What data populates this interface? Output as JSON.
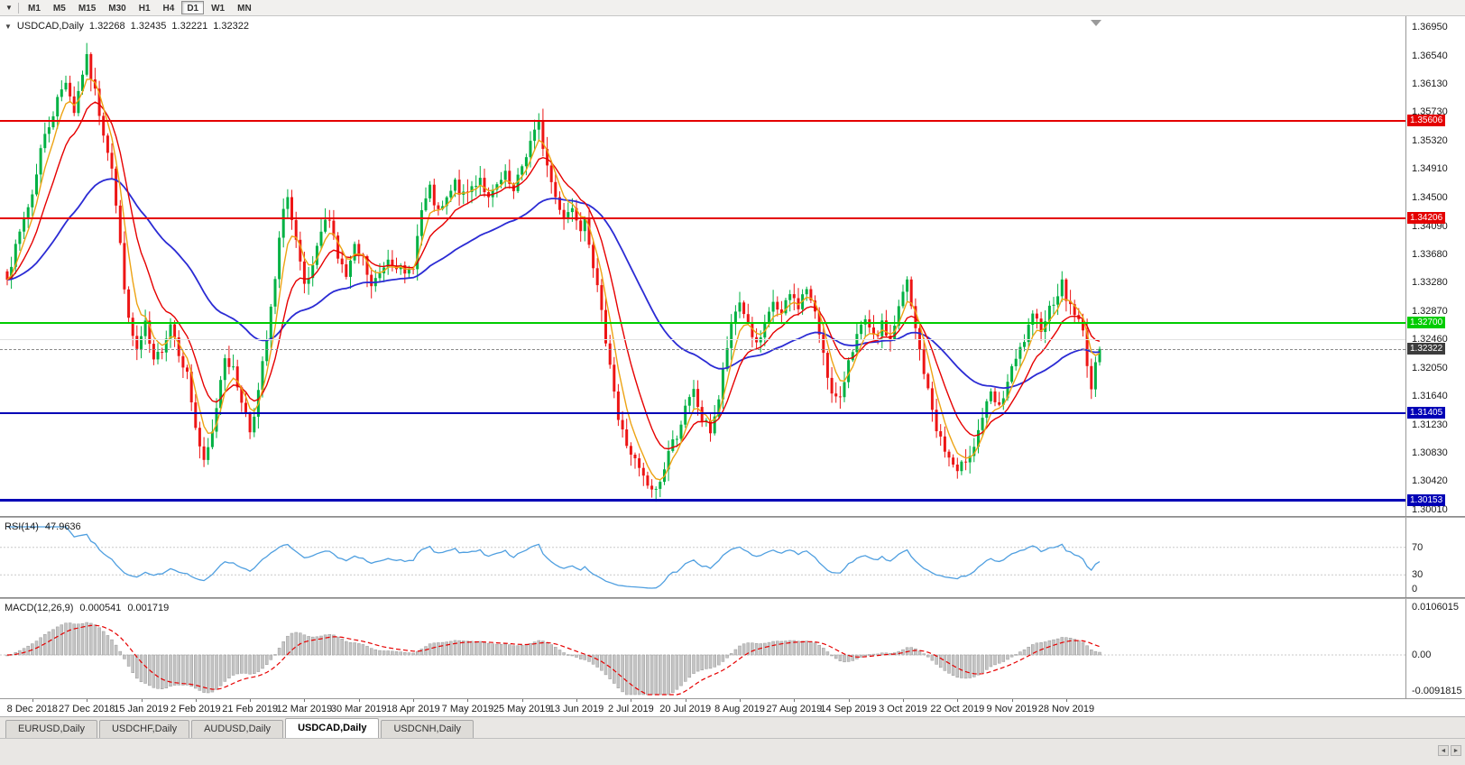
{
  "toolbar": {
    "dropdown_icon": "▼",
    "timeframes": [
      "M1",
      "M5",
      "M15",
      "M30",
      "H1",
      "H4",
      "D1",
      "W1",
      "MN"
    ],
    "active_timeframe": "D1"
  },
  "chart": {
    "title_dropdown_icon": "▼",
    "symbol_label": "USDCAD,Daily",
    "ohlc": {
      "open": "1.32268",
      "high": "1.32435",
      "low": "1.32221",
      "close": "1.32322"
    },
    "price_axis_labels": [
      "1.36950",
      "1.36540",
      "1.36130",
      "1.35730",
      "1.35320",
      "1.34910",
      "1.34500",
      "1.34090",
      "1.33680",
      "1.33280",
      "1.32870",
      "1.32460",
      "1.32050",
      "1.31640",
      "1.31230",
      "1.30830",
      "1.30420",
      "1.30010"
    ],
    "hlines": [
      {
        "value": 1.35606,
        "label": "1.35606",
        "color": "#e40000",
        "thickness": 2
      },
      {
        "value": 1.34206,
        "label": "1.34206",
        "color": "#e40000",
        "thickness": 2
      },
      {
        "value": 1.327,
        "label": "1.32700",
        "color": "#00cc00",
        "thickness": 2
      },
      {
        "value": 1.31405,
        "label": "1.31405",
        "color": "#0000b6",
        "thickness": 2
      },
      {
        "value": 1.30153,
        "label": "1.30153",
        "color": "#0000b6",
        "thickness": 3
      }
    ],
    "current_price": {
      "value": 1.32322,
      "label": "1.32322",
      "badge_color": "#3c3c3c"
    },
    "date_axis_labels": [
      "8 Dec 2018",
      "27 Dec 2018",
      "15 Jan 2019",
      "2 Feb 2019",
      "21 Feb 2019",
      "12 Mar 2019",
      "30 Mar 2019",
      "18 Apr 2019",
      "7 May 2019",
      "25 May 2019",
      "13 Jun 2019",
      "2 Jul 2019",
      "20 Jul 2019",
      "8 Aug 2019",
      "27 Aug 2019",
      "14 Sep 2019",
      "3 Oct 2019",
      "22 Oct 2019",
      "9 Nov 2019",
      "28 Nov 2019"
    ],
    "colors": {
      "bull": "#00b143",
      "bear": "#ed1515",
      "ma_fast": "#eda313",
      "ma_mid": "#e60000",
      "ma_slow": "#2b2bd4"
    }
  },
  "rsi": {
    "name": "RSI(14)",
    "value": "47.9636",
    "period": 14,
    "scale_labels": [
      "70",
      "30",
      "0"
    ],
    "line_color": "#4f9fe0"
  },
  "macd": {
    "name": "MACD(12,26,9)",
    "main_value": "0.000541",
    "signal_value": "0.001719",
    "fast": 12,
    "slow": 26,
    "signal": 9,
    "scale_top": "0.0106015",
    "scale_zero": "0.00",
    "scale_bottom": "-0.0091815",
    "histogram_color": "#c4c4c4",
    "histogram_border": "#9a9a9a",
    "signal_color": "#e60000"
  },
  "tabs": [
    {
      "label": "EURUSD,Daily",
      "active": false
    },
    {
      "label": "USDCHF,Daily",
      "active": false
    },
    {
      "label": "AUDUSD,Daily",
      "active": false
    },
    {
      "label": "USDCAD,Daily",
      "active": true
    },
    {
      "label": "USDCNH,Daily",
      "active": false
    }
  ],
  "tab_scroll": {
    "left_icon": "◄",
    "right_icon": "►"
  },
  "chart_data": {
    "type": "candlestick",
    "symbol": "USDCAD",
    "timeframe": "Daily",
    "y_range": [
      1.3001,
      1.3695
    ],
    "bar_count": 262,
    "first_label_bar": 6,
    "bars_per_label": 13,
    "last_close": 1.32322,
    "gridline_prices": [
      1.3246
    ],
    "support_resistance": [
      1.35606,
      1.34206,
      1.327,
      1.31405,
      1.30153
    ],
    "moving_average_periods": {
      "fast": 5,
      "mid": 12,
      "slow": 45
    },
    "rsi_last": 47.9636,
    "macd_last": {
      "main": 0.000541,
      "signal": 0.001719
    },
    "close_waypoints": [
      [
        0,
        1.334
      ],
      [
        2,
        1.3375
      ],
      [
        4,
        1.342
      ],
      [
        6,
        1.3455
      ],
      [
        8,
        1.352
      ],
      [
        10,
        1.3555
      ],
      [
        12,
        1.359
      ],
      [
        14,
        1.362
      ],
      [
        16,
        1.3575
      ],
      [
        18,
        1.363
      ],
      [
        19,
        1.3648
      ],
      [
        21,
        1.36
      ],
      [
        23,
        1.3545
      ],
      [
        25,
        1.3495
      ],
      [
        27,
        1.338
      ],
      [
        29,
        1.327
      ],
      [
        31,
        1.323
      ],
      [
        33,
        1.3265
      ],
      [
        35,
        1.321
      ],
      [
        37,
        1.3235
      ],
      [
        39,
        1.327
      ],
      [
        41,
        1.323
      ],
      [
        43,
        1.3195
      ],
      [
        45,
        1.312
      ],
      [
        47,
        1.3065
      ],
      [
        49,
        1.311
      ],
      [
        51,
        1.319
      ],
      [
        52,
        1.3225
      ],
      [
        54,
        1.32
      ],
      [
        56,
        1.316
      ],
      [
        58,
        1.3115
      ],
      [
        60,
        1.317
      ],
      [
        62,
        1.3245
      ],
      [
        64,
        1.333
      ],
      [
        66,
        1.344
      ],
      [
        67,
        1.345
      ],
      [
        68,
        1.3415
      ],
      [
        70,
        1.335
      ],
      [
        71,
        1.332
      ],
      [
        73,
        1.3345
      ],
      [
        75,
        1.34
      ],
      [
        77,
        1.3425
      ],
      [
        79,
        1.3365
      ],
      [
        81,
        1.3335
      ],
      [
        83,
        1.3375
      ],
      [
        85,
        1.336
      ],
      [
        87,
        1.332
      ],
      [
        89,
        1.334
      ],
      [
        91,
        1.3365
      ],
      [
        93,
        1.3355
      ],
      [
        95,
        1.3335
      ],
      [
        97,
        1.3355
      ],
      [
        99,
        1.343
      ],
      [
        101,
        1.346
      ],
      [
        103,
        1.3425
      ],
      [
        105,
        1.3445
      ],
      [
        107,
        1.347
      ],
      [
        109,
        1.345
      ],
      [
        111,
        1.3465
      ],
      [
        113,
        1.348
      ],
      [
        115,
        1.3445
      ],
      [
        117,
        1.3465
      ],
      [
        119,
        1.348
      ],
      [
        121,
        1.3455
      ],
      [
        123,
        1.3495
      ],
      [
        125,
        1.353
      ],
      [
        127,
        1.3555
      ],
      [
        129,
        1.3495
      ],
      [
        131,
        1.345
      ],
      [
        133,
        1.3425
      ],
      [
        135,
        1.3435
      ],
      [
        137,
        1.341
      ],
      [
        138,
        1.3425
      ],
      [
        140,
        1.3355
      ],
      [
        142,
        1.328
      ],
      [
        144,
        1.3215
      ],
      [
        146,
        1.313
      ],
      [
        148,
        1.3095
      ],
      [
        150,
        1.307
      ],
      [
        152,
        1.3045
      ],
      [
        154,
        1.3025
      ],
      [
        156,
        1.304
      ],
      [
        158,
        1.3085
      ],
      [
        160,
        1.311
      ],
      [
        162,
        1.3145
      ],
      [
        164,
        1.317
      ],
      [
        166,
        1.313
      ],
      [
        168,
        1.3115
      ],
      [
        170,
        1.316
      ],
      [
        172,
        1.3235
      ],
      [
        174,
        1.3285
      ],
      [
        175,
        1.33
      ],
      [
        177,
        1.327
      ],
      [
        179,
        1.3235
      ],
      [
        181,
        1.326
      ],
      [
        183,
        1.33
      ],
      [
        185,
        1.328
      ],
      [
        187,
        1.331
      ],
      [
        189,
        1.3295
      ],
      [
        191,
        1.332
      ],
      [
        193,
        1.328
      ],
      [
        195,
        1.323
      ],
      [
        197,
        1.3165
      ],
      [
        199,
        1.3155
      ],
      [
        201,
        1.322
      ],
      [
        203,
        1.325
      ],
      [
        205,
        1.327
      ],
      [
        207,
        1.3245
      ],
      [
        209,
        1.3265
      ],
      [
        211,
        1.3245
      ],
      [
        213,
        1.329
      ],
      [
        215,
        1.333
      ],
      [
        216,
        1.329
      ],
      [
        218,
        1.323
      ],
      [
        220,
        1.317
      ],
      [
        222,
        1.312
      ],
      [
        224,
        1.3085
      ],
      [
        226,
        1.3065
      ],
      [
        227,
        1.305
      ],
      [
        229,
        1.3075
      ],
      [
        231,
        1.3095
      ],
      [
        233,
        1.3135
      ],
      [
        235,
        1.3165
      ],
      [
        237,
        1.3145
      ],
      [
        239,
        1.3185
      ],
      [
        241,
        1.3215
      ],
      [
        243,
        1.3245
      ],
      [
        245,
        1.3275
      ],
      [
        247,
        1.3265
      ],
      [
        249,
        1.329
      ],
      [
        251,
        1.3315
      ],
      [
        252,
        1.3325
      ],
      [
        253,
        1.3305
      ],
      [
        255,
        1.3285
      ],
      [
        257,
        1.3255
      ],
      [
        258,
        1.3215
      ],
      [
        259,
        1.3175
      ],
      [
        260,
        1.3205
      ],
      [
        261,
        1.3232
      ]
    ]
  }
}
